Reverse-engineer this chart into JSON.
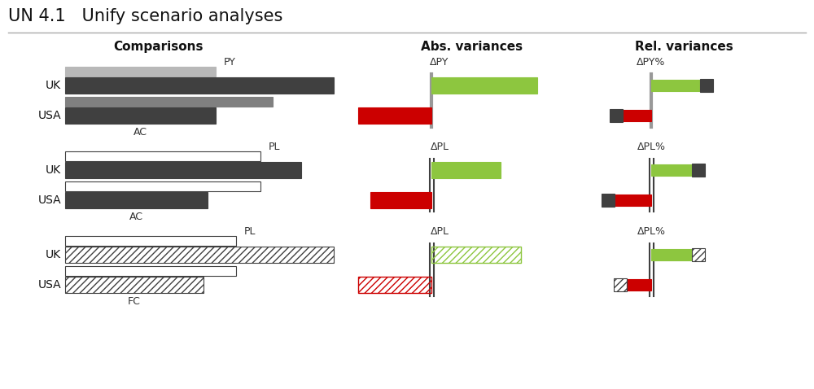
{
  "title": "UN 4.1   Unify scenario analyses",
  "background_color": "#ffffff",
  "colors": {
    "dark_gray": "#404040",
    "medium_gray": "#808080",
    "light_gray": "#b8b8b8",
    "green": "#8dc63f",
    "red": "#cc0000",
    "white": "#ffffff",
    "sep_gray": "#999999",
    "line_gray": "#aaaaaa"
  },
  "section_headers": {
    "comparisons": "Comparisons",
    "abs_variances": "Abs. variances",
    "rel_variances": "Rel. variances"
  }
}
